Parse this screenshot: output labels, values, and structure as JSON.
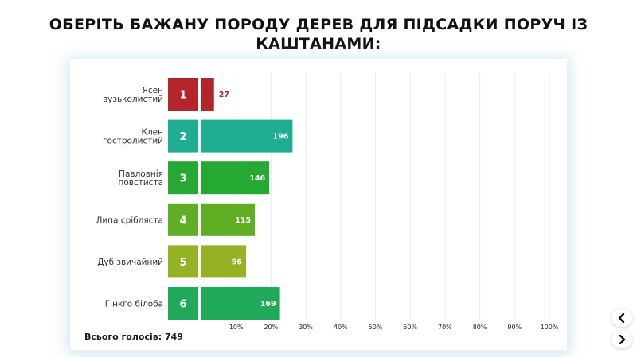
{
  "title": "ОБЕРІТЬ БАЖАНУ ПОРОДУ ДЕРЕВ ДЛЯ ПІДСАДКИ ПОРУЧ ІЗ КАШТАНАМИ:",
  "total_label": "Всього голосів: 749",
  "nav": {
    "prev_icon": "chevron-left-icon",
    "next_icon": "chevron-right-icon"
  },
  "chart_data": {
    "type": "bar",
    "orientation": "horizontal",
    "categories": [
      {
        "label_lines": [
          "Ясен",
          "вузьколистий"
        ],
        "rank": "1",
        "value": 27,
        "color": "#b3252b"
      },
      {
        "label_lines": [
          "Клен",
          "гостролистий"
        ],
        "rank": "2",
        "value": 196,
        "color": "#1fae92"
      },
      {
        "label_lines": [
          "Павловнія",
          "повстиста"
        ],
        "rank": "3",
        "value": 146,
        "color": "#26a933"
      },
      {
        "label_lines": [
          "Липа срібляста"
        ],
        "rank": "4",
        "value": 115,
        "color": "#5fae24"
      },
      {
        "label_lines": [
          "Дуб звичайний"
        ],
        "rank": "5",
        "value": 96,
        "color": "#94b224"
      },
      {
        "label_lines": [
          "Гінкго білоба"
        ],
        "rank": "6",
        "value": 169,
        "color": "#21a95a"
      }
    ],
    "total": 749,
    "x_ticks": [
      "10%",
      "20%",
      "30%",
      "40%",
      "50%",
      "60%",
      "70%",
      "80%",
      "90%",
      "100%"
    ],
    "xlim": [
      0,
      100
    ],
    "grid": true
  }
}
